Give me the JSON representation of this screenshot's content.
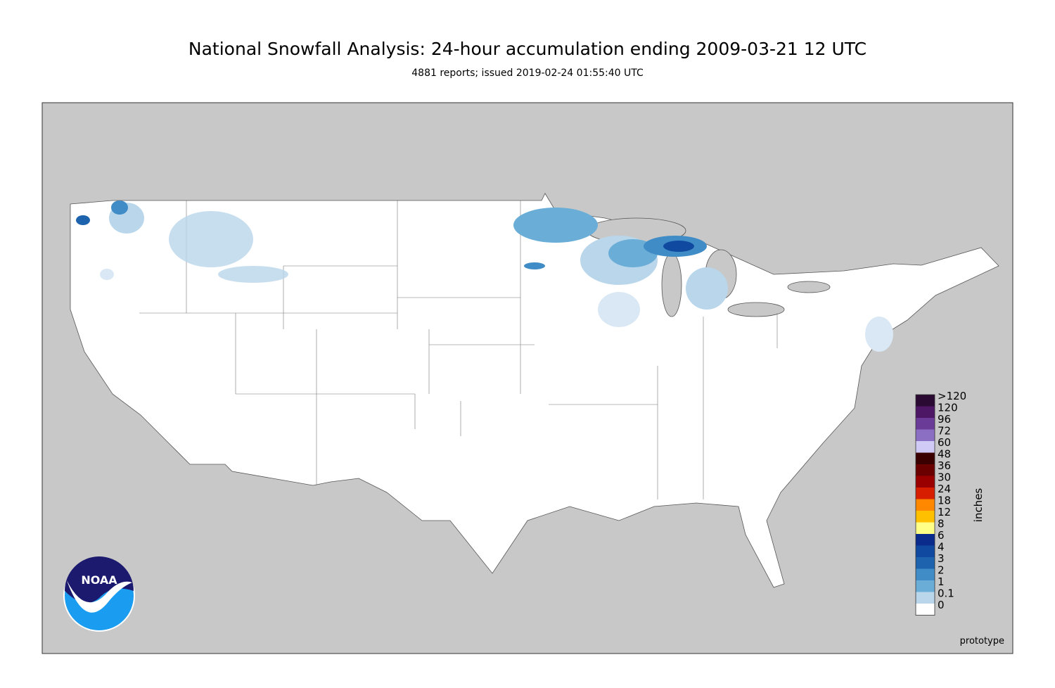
{
  "header": {
    "title": "National Snowfall Analysis: 24-hour accumulation ending 2009-03-21 12 UTC",
    "subtitle": "4881 reports; issued 2019-02-24 01:55:40 UTC"
  },
  "legend": {
    "unit": "inches",
    "bins": [
      {
        "label": ">120",
        "color": "#2a0a33"
      },
      {
        "label": "120",
        "color": "#4d1766"
      },
      {
        "label": "96",
        "color": "#6a3c97"
      },
      {
        "label": "72",
        "color": "#8b6fc2"
      },
      {
        "label": "60",
        "color": "#cfcbf6"
      },
      {
        "label": "48",
        "color": "#3a0000"
      },
      {
        "label": "36",
        "color": "#6b0000"
      },
      {
        "label": "30",
        "color": "#9a0000"
      },
      {
        "label": "24",
        "color": "#d81e00"
      },
      {
        "label": "18",
        "color": "#ff8800"
      },
      {
        "label": "12",
        "color": "#ffc000"
      },
      {
        "label": "8",
        "color": "#ffff88"
      },
      {
        "label": "6",
        "color": "#0a2a8c"
      },
      {
        "label": "4",
        "color": "#0f4aa0"
      },
      {
        "label": "3",
        "color": "#1d63ad"
      },
      {
        "label": "2",
        "color": "#3f8cc6"
      },
      {
        "label": "1",
        "color": "#6aaed8"
      },
      {
        "label": "0.1",
        "color": "#b9d6eb"
      },
      {
        "label": "0",
        "color": "#ffffff"
      }
    ]
  },
  "footer": {
    "note": "prototype"
  },
  "logo": {
    "text": "NOAA"
  }
}
